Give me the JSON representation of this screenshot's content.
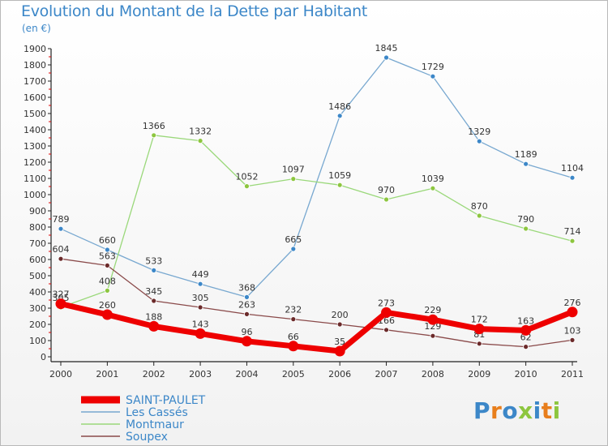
{
  "title": "Evolution du Montant de la Dette par Habitant",
  "subtitle": "(en €)",
  "logo": {
    "text": "Proxiti",
    "colors": [
      "#3c87c8",
      "#e87e1c",
      "#3c87c8",
      "#8dc63f",
      "#3c87c8",
      "#e87e1c",
      "#8dc63f"
    ]
  },
  "chart_data": {
    "type": "line",
    "x": [
      "2000",
      "2001",
      "2002",
      "2003",
      "2004",
      "2005",
      "2006",
      "2007",
      "2008",
      "2009",
      "2010",
      "2011"
    ],
    "ylim": [
      0,
      1900
    ],
    "yticks": [
      0,
      100,
      200,
      300,
      400,
      500,
      600,
      700,
      800,
      900,
      1000,
      1100,
      1200,
      1300,
      1400,
      1500,
      1600,
      1700,
      1800,
      1900
    ],
    "grid": false,
    "legend_position": "bottom-left",
    "series": [
      {
        "name": "Les Cassés",
        "color": "#78a8d0",
        "marker": "#3c87c8",
        "width": 1.3,
        "values": [
          789,
          660,
          533,
          449,
          368,
          665,
          1486,
          1845,
          1729,
          1329,
          1189,
          1104
        ]
      },
      {
        "name": "Montmaur",
        "color": "#9ad87a",
        "marker": "#8dc63f",
        "width": 1.3,
        "values": [
          305,
          408,
          1366,
          1332,
          1052,
          1097,
          1059,
          970,
          1039,
          870,
          790,
          714
        ]
      },
      {
        "name": "Soupex",
        "color": "#8a4a4a",
        "marker": "#6b2a2a",
        "width": 1.3,
        "values": [
          604,
          563,
          345,
          305,
          263,
          232,
          200,
          166,
          129,
          81,
          62,
          103
        ]
      },
      {
        "name": "SAINT-PAULET",
        "color": "#ee0000",
        "marker": "#ee0000",
        "width": 7,
        "values": [
          327,
          260,
          188,
          143,
          96,
          66,
          35,
          273,
          229,
          172,
          163,
          276
        ]
      }
    ],
    "legend": [
      "SAINT-PAULET",
      "Les Cassés",
      "Montmaur",
      "Soupex"
    ]
  }
}
